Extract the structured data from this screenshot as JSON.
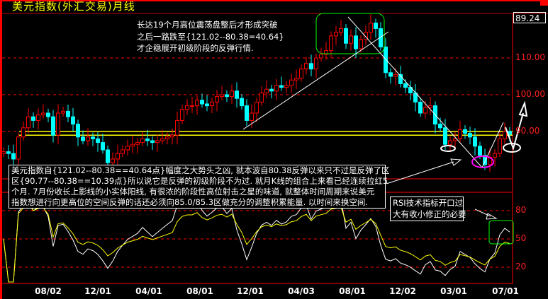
{
  "header": {
    "title": "美元指数(外汇交易)月线",
    "current_value": "89.24"
  },
  "annotations": {
    "note_top": [
      "长达19个月高位震荡盘整后才形成突破",
      "之后一路跌至{121.02--80.38=40.64}",
      "才企稳展开初级阶段的反弹行情."
    ],
    "note_main": [
      "美元指数自{121.02--80.38==40.64点}幅度之大势头之凶, 就本波自80.38反弹以来只不过是反弹了区",
      "区{90.77--80.38==10.39点}所以说它是反弹的初级阶段不为过. 就月K线的组合上来看已经连续拉红5",
      "个月. 7月份收长上影线的小实体阳线, 有很浓的阶段性高位射击之星的味道, 就整体时间周期来说美元",
      "指数想进行向更高位的空间反弹的话还必须向85.0/85.3区做充分的调整积累能量. 以时间来换空间."
    ],
    "note_rsi": [
      "RSI技术指标开口过",
      "大有收小修正的必要"
    ]
  },
  "colors": {
    "up": "#ff0000",
    "down": "#00ffff",
    "grid": "#ff0000",
    "rsi_fast": "#ffffff",
    "rsi_slow": "#ffff00",
    "support": "#ffff00",
    "highlight_box": "#00ff00",
    "ellipse_low": "#ff00ff"
  },
  "chart_data": {
    "type": "candlestick",
    "price_axis": {
      "ticks": [
        "110.00",
        "100.00",
        "90.00"
      ],
      "values": [
        110,
        100,
        90
      ],
      "grid": "dashed"
    },
    "rsi_axis": {
      "ticks": [
        "80",
        "50",
        "20"
      ],
      "values": [
        80,
        50,
        20
      ]
    },
    "x_ticks": [
      "08/02",
      "12/01",
      "04/01",
      "08/01",
      "12/01",
      "04/03",
      "08/01",
      "12/02",
      "03/01",
      "07/01"
    ],
    "support_band": [
      89.0,
      90.0
    ],
    "close": [
      84.5,
      84,
      82.5,
      88.5,
      91,
      94,
      93,
      94.5,
      95,
      94,
      89,
      95,
      95.5,
      94,
      92,
      88.5,
      87.5,
      88.5,
      88,
      87,
      85,
      81.5,
      82.5,
      84,
      85,
      86,
      86.5,
      87,
      88,
      87.5,
      87,
      87.5,
      88,
      88.5,
      89,
      93,
      96,
      97,
      97,
      98.5,
      97.5,
      97,
      98,
      99.5,
      100,
      99.5,
      101,
      99,
      97,
      93,
      95,
      98,
      100.5,
      101.5,
      101,
      102.5,
      102,
      102.5,
      104,
      104.5,
      107,
      108.5,
      107,
      110,
      111,
      112,
      116,
      117,
      118,
      114,
      116,
      112.5,
      115,
      117,
      119.5,
      118,
      113,
      106,
      105,
      105.5,
      103,
      102,
      100.5,
      98,
      95,
      96.5,
      97,
      92,
      91,
      86.5,
      87.5,
      88,
      90.5,
      89.5,
      88.5,
      86,
      83.5,
      81,
      83,
      84,
      88,
      90,
      89.24
    ]
  }
}
